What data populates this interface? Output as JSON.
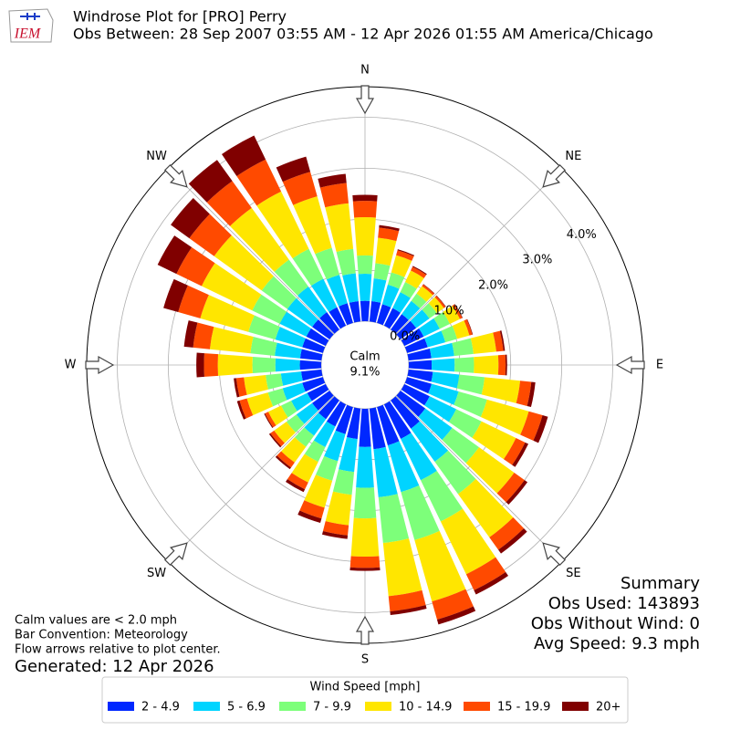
{
  "header": {
    "title": "Windrose Plot for [PRO] Perry",
    "subtitle": "Obs Between: 28 Sep 2007 03:55 AM - 12 Apr 2026 01:55 AM America/Chicago",
    "logo": "IEM"
  },
  "chart_data": {
    "type": "windrose",
    "x": [
      0,
      10,
      20,
      30,
      40,
      50,
      60,
      70,
      80,
      90,
      100,
      110,
      120,
      130,
      140,
      150,
      160,
      170,
      180,
      190,
      200,
      210,
      220,
      230,
      240,
      250,
      260,
      270,
      280,
      290,
      300,
      310,
      320,
      330,
      340,
      350
    ],
    "series": [
      {
        "name": "2 - 4.9",
        "color": "#0028ff",
        "values": [
          0.4,
          0.4,
          0.38,
          0.38,
          0.37,
          0.38,
          0.42,
          0.42,
          0.45,
          0.45,
          0.48,
          0.5,
          0.55,
          0.6,
          0.68,
          0.75,
          0.78,
          0.8,
          0.75,
          0.6,
          0.55,
          0.48,
          0.45,
          0.42,
          0.4,
          0.42,
          0.4,
          0.42,
          0.42,
          0.42,
          0.42,
          0.42,
          0.42,
          0.4,
          0.4,
          0.4
        ]
      },
      {
        "name": "5 - 6.9",
        "color": "#00d4ff",
        "values": [
          0.53,
          0.45,
          0.4,
          0.35,
          0.32,
          0.32,
          0.35,
          0.36,
          0.45,
          0.45,
          0.52,
          0.55,
          0.58,
          0.65,
          0.8,
          0.9,
          0.95,
          0.95,
          0.8,
          0.65,
          0.55,
          0.45,
          0.4,
          0.38,
          0.35,
          0.4,
          0.4,
          0.48,
          0.5,
          0.55,
          0.58,
          0.6,
          0.62,
          0.62,
          0.58,
          0.55
        ]
      },
      {
        "name": "7 - 9.9",
        "color": "#7dff7a",
        "values": [
          0.36,
          0.3,
          0.25,
          0.22,
          0.18,
          0.18,
          0.22,
          0.24,
          0.38,
          0.38,
          0.5,
          0.58,
          0.55,
          0.65,
          0.78,
          0.9,
          0.98,
          0.9,
          0.6,
          0.45,
          0.4,
          0.32,
          0.27,
          0.24,
          0.22,
          0.3,
          0.3,
          0.45,
          0.48,
          0.55,
          0.6,
          0.62,
          0.65,
          0.65,
          0.55,
          0.48
        ]
      },
      {
        "name": "10 - 14.9",
        "color": "#ffe600",
        "values": [
          0.75,
          0.5,
          0.35,
          0.25,
          0.18,
          0.17,
          0.22,
          0.25,
          0.45,
          0.48,
          0.7,
          0.85,
          0.75,
          0.85,
          1.05,
          1.15,
          1.25,
          1.05,
          0.75,
          0.6,
          0.55,
          0.45,
          0.38,
          0.3,
          0.28,
          0.43,
          0.43,
          0.68,
          0.8,
          0.98,
          1.1,
          1.15,
          1.25,
          1.25,
          1.05,
          0.9
        ]
      },
      {
        "name": "15 - 19.9",
        "color": "#ff4a00",
        "values": [
          0.32,
          0.2,
          0.1,
          0.08,
          0.04,
          0.04,
          0.05,
          0.06,
          0.14,
          0.14,
          0.22,
          0.28,
          0.2,
          0.25,
          0.3,
          0.35,
          0.37,
          0.3,
          0.22,
          0.2,
          0.22,
          0.15,
          0.12,
          0.09,
          0.07,
          0.15,
          0.15,
          0.27,
          0.33,
          0.45,
          0.55,
          0.6,
          0.65,
          0.7,
          0.5,
          0.4
        ]
      },
      {
        "name": "20+",
        "color": "#800000",
        "values": [
          0.12,
          0.05,
          0.02,
          0.02,
          0.01,
          0.01,
          0.01,
          0.01,
          0.03,
          0.03,
          0.08,
          0.11,
          0.07,
          0.07,
          0.09,
          0.09,
          0.1,
          0.07,
          0.06,
          0.07,
          0.09,
          0.06,
          0.04,
          0.03,
          0.02,
          0.05,
          0.05,
          0.15,
          0.18,
          0.3,
          0.41,
          0.45,
          0.51,
          0.52,
          0.31,
          0.18
        ]
      }
    ],
    "legend_title": "Wind Speed [mph]",
    "ylim": [
      0,
      4.6
    ],
    "yticks": [
      {
        "value": 0,
        "label": "0.0%"
      },
      {
        "value": 1,
        "label": "1.0%"
      },
      {
        "value": 2,
        "label": "2.0%"
      },
      {
        "value": 3,
        "label": "3.0%"
      },
      {
        "value": 4,
        "label": "4.0%"
      }
    ],
    "compass": [
      "N",
      "NE",
      "E",
      "SE",
      "S",
      "SW",
      "W",
      "NW"
    ],
    "calm": {
      "label": "Calm",
      "value": 9.1,
      "value_label": "9.1%"
    },
    "grid": true
  },
  "summary": {
    "title": "Summary",
    "lines": [
      "Obs Used: 143893",
      "Obs Without Wind: 0",
      "Avg Speed: 9.3 mph"
    ]
  },
  "notes": [
    "Calm values are < 2.0 mph",
    "Bar Convention: Meteorology",
    "Flow arrows relative to plot center."
  ],
  "generated": "Generated: 12 Apr 2026"
}
